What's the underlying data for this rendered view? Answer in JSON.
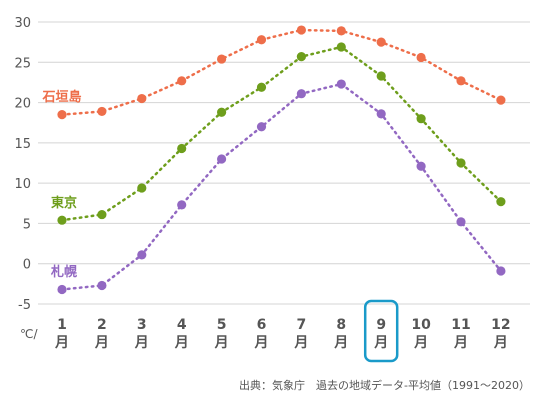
{
  "chart_data": {
    "type": "line",
    "categories": [
      "1",
      "2",
      "3",
      "4",
      "5",
      "6",
      "7",
      "8",
      "9",
      "10",
      "11",
      "12"
    ],
    "month_suffix": "月",
    "unit_label": "℃/",
    "ylim": [
      -5,
      30
    ],
    "yticks": [
      -5,
      0,
      5,
      10,
      15,
      20,
      25,
      30
    ],
    "grid": "horizontal",
    "highlight_category": "9",
    "highlight_color": "#1a9ac9",
    "series": [
      {
        "name": "石垣島",
        "color": "#ee6e4a",
        "values": [
          18.5,
          18.9,
          20.5,
          22.7,
          25.4,
          27.8,
          29.0,
          28.9,
          27.5,
          25.6,
          22.7,
          20.3
        ]
      },
      {
        "name": "東京",
        "color": "#6e9e1c",
        "values": [
          5.4,
          6.1,
          9.4,
          14.3,
          18.8,
          21.9,
          25.7,
          26.9,
          23.3,
          18.0,
          12.5,
          7.7
        ]
      },
      {
        "name": "札幌",
        "color": "#9268c2",
        "values": [
          -3.2,
          -2.7,
          1.1,
          7.3,
          13.0,
          17.0,
          21.1,
          22.3,
          18.6,
          12.1,
          5.2,
          -0.9
        ]
      }
    ],
    "source": "出典：気象庁　過去の地域データ-平均値（1991〜2020）"
  }
}
